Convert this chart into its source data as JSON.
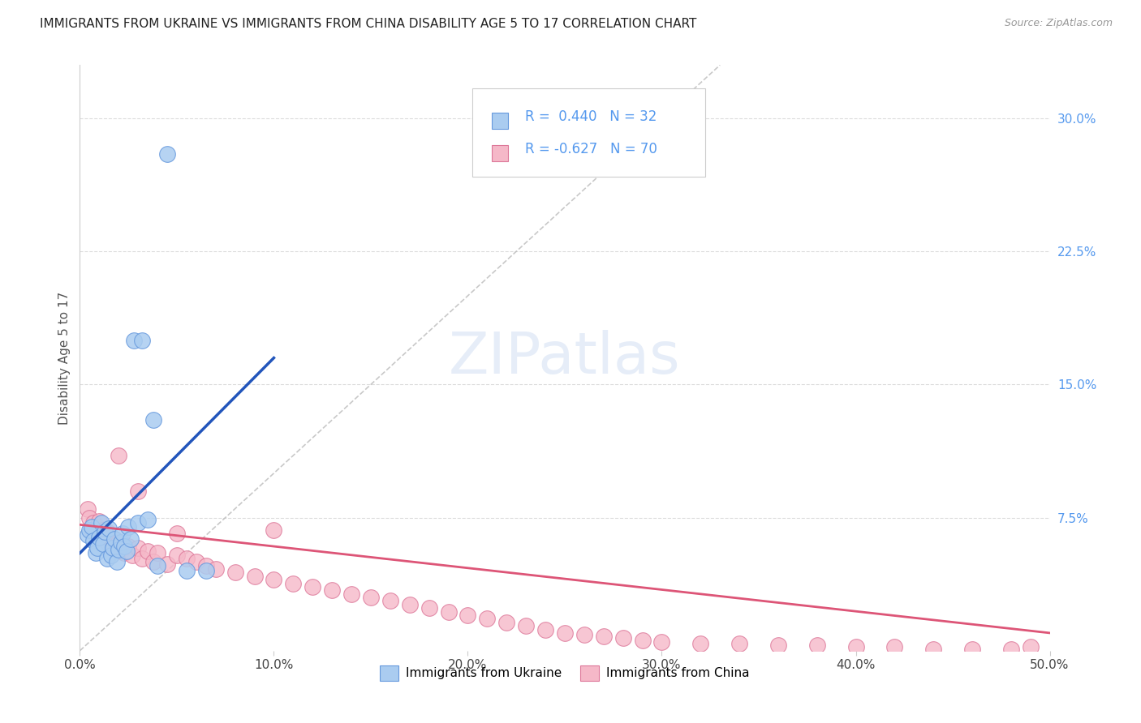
{
  "title": "IMMIGRANTS FROM UKRAINE VS IMMIGRANTS FROM CHINA DISABILITY AGE 5 TO 17 CORRELATION CHART",
  "source": "Source: ZipAtlas.com",
  "ylabel": "Disability Age 5 to 17",
  "xlim": [
    0.0,
    0.5
  ],
  "ylim": [
    0.0,
    0.33
  ],
  "ukraine_color": "#aaccf0",
  "ukraine_edge": "#6699dd",
  "china_color": "#f5b8c8",
  "china_edge": "#dd7799",
  "ukraine_line_color": "#2255bb",
  "china_line_color": "#dd5577",
  "diagonal_color": "#bbbbbb",
  "ukraine_R": 0.44,
  "ukraine_N": 32,
  "china_R": -0.627,
  "china_N": 70,
  "legend_ukraine": "Immigrants from Ukraine",
  "legend_china": "Immigrants from China",
  "background_color": "#ffffff",
  "grid_color": "#cccccc",
  "ukraine_x": [
    0.004,
    0.005,
    0.006,
    0.007,
    0.008,
    0.009,
    0.01,
    0.011,
    0.012,
    0.013,
    0.014,
    0.015,
    0.016,
    0.017,
    0.018,
    0.019,
    0.02,
    0.021,
    0.022,
    0.023,
    0.024,
    0.025,
    0.026,
    0.03,
    0.035,
    0.04,
    0.055,
    0.065,
    0.028,
    0.032,
    0.038,
    0.045
  ],
  "ukraine_y": [
    0.065,
    0.068,
    0.07,
    0.062,
    0.055,
    0.058,
    0.064,
    0.072,
    0.06,
    0.067,
    0.052,
    0.069,
    0.054,
    0.058,
    0.063,
    0.05,
    0.057,
    0.061,
    0.066,
    0.059,
    0.056,
    0.07,
    0.063,
    0.072,
    0.074,
    0.048,
    0.045,
    0.045,
    0.175,
    0.175,
    0.13,
    0.28
  ],
  "china_x": [
    0.004,
    0.005,
    0.006,
    0.007,
    0.008,
    0.009,
    0.01,
    0.011,
    0.012,
    0.013,
    0.014,
    0.015,
    0.016,
    0.017,
    0.018,
    0.019,
    0.02,
    0.021,
    0.022,
    0.023,
    0.025,
    0.027,
    0.03,
    0.032,
    0.035,
    0.038,
    0.04,
    0.045,
    0.05,
    0.055,
    0.06,
    0.065,
    0.07,
    0.08,
    0.09,
    0.1,
    0.11,
    0.12,
    0.13,
    0.14,
    0.15,
    0.16,
    0.17,
    0.18,
    0.19,
    0.2,
    0.21,
    0.22,
    0.23,
    0.24,
    0.25,
    0.26,
    0.27,
    0.28,
    0.29,
    0.3,
    0.32,
    0.34,
    0.36,
    0.38,
    0.4,
    0.42,
    0.44,
    0.46,
    0.48,
    0.02,
    0.03,
    0.05,
    0.1,
    0.49
  ],
  "china_y": [
    0.08,
    0.075,
    0.068,
    0.072,
    0.065,
    0.07,
    0.073,
    0.063,
    0.068,
    0.062,
    0.067,
    0.06,
    0.064,
    0.058,
    0.063,
    0.057,
    0.061,
    0.056,
    0.06,
    0.055,
    0.059,
    0.054,
    0.058,
    0.052,
    0.056,
    0.05,
    0.055,
    0.049,
    0.054,
    0.052,
    0.05,
    0.048,
    0.046,
    0.044,
    0.042,
    0.04,
    0.038,
    0.036,
    0.034,
    0.032,
    0.03,
    0.028,
    0.026,
    0.024,
    0.022,
    0.02,
    0.018,
    0.016,
    0.014,
    0.012,
    0.01,
    0.009,
    0.008,
    0.007,
    0.006,
    0.005,
    0.004,
    0.004,
    0.003,
    0.003,
    0.002,
    0.002,
    0.001,
    0.001,
    0.001,
    0.11,
    0.09,
    0.066,
    0.068,
    0.002
  ],
  "ukraine_line_x": [
    0.0,
    0.1
  ],
  "ukraine_line_y0": 0.055,
  "ukraine_line_y1": 0.165,
  "china_line_x": [
    0.0,
    0.5
  ],
  "china_line_y0": 0.071,
  "china_line_y1": 0.01
}
